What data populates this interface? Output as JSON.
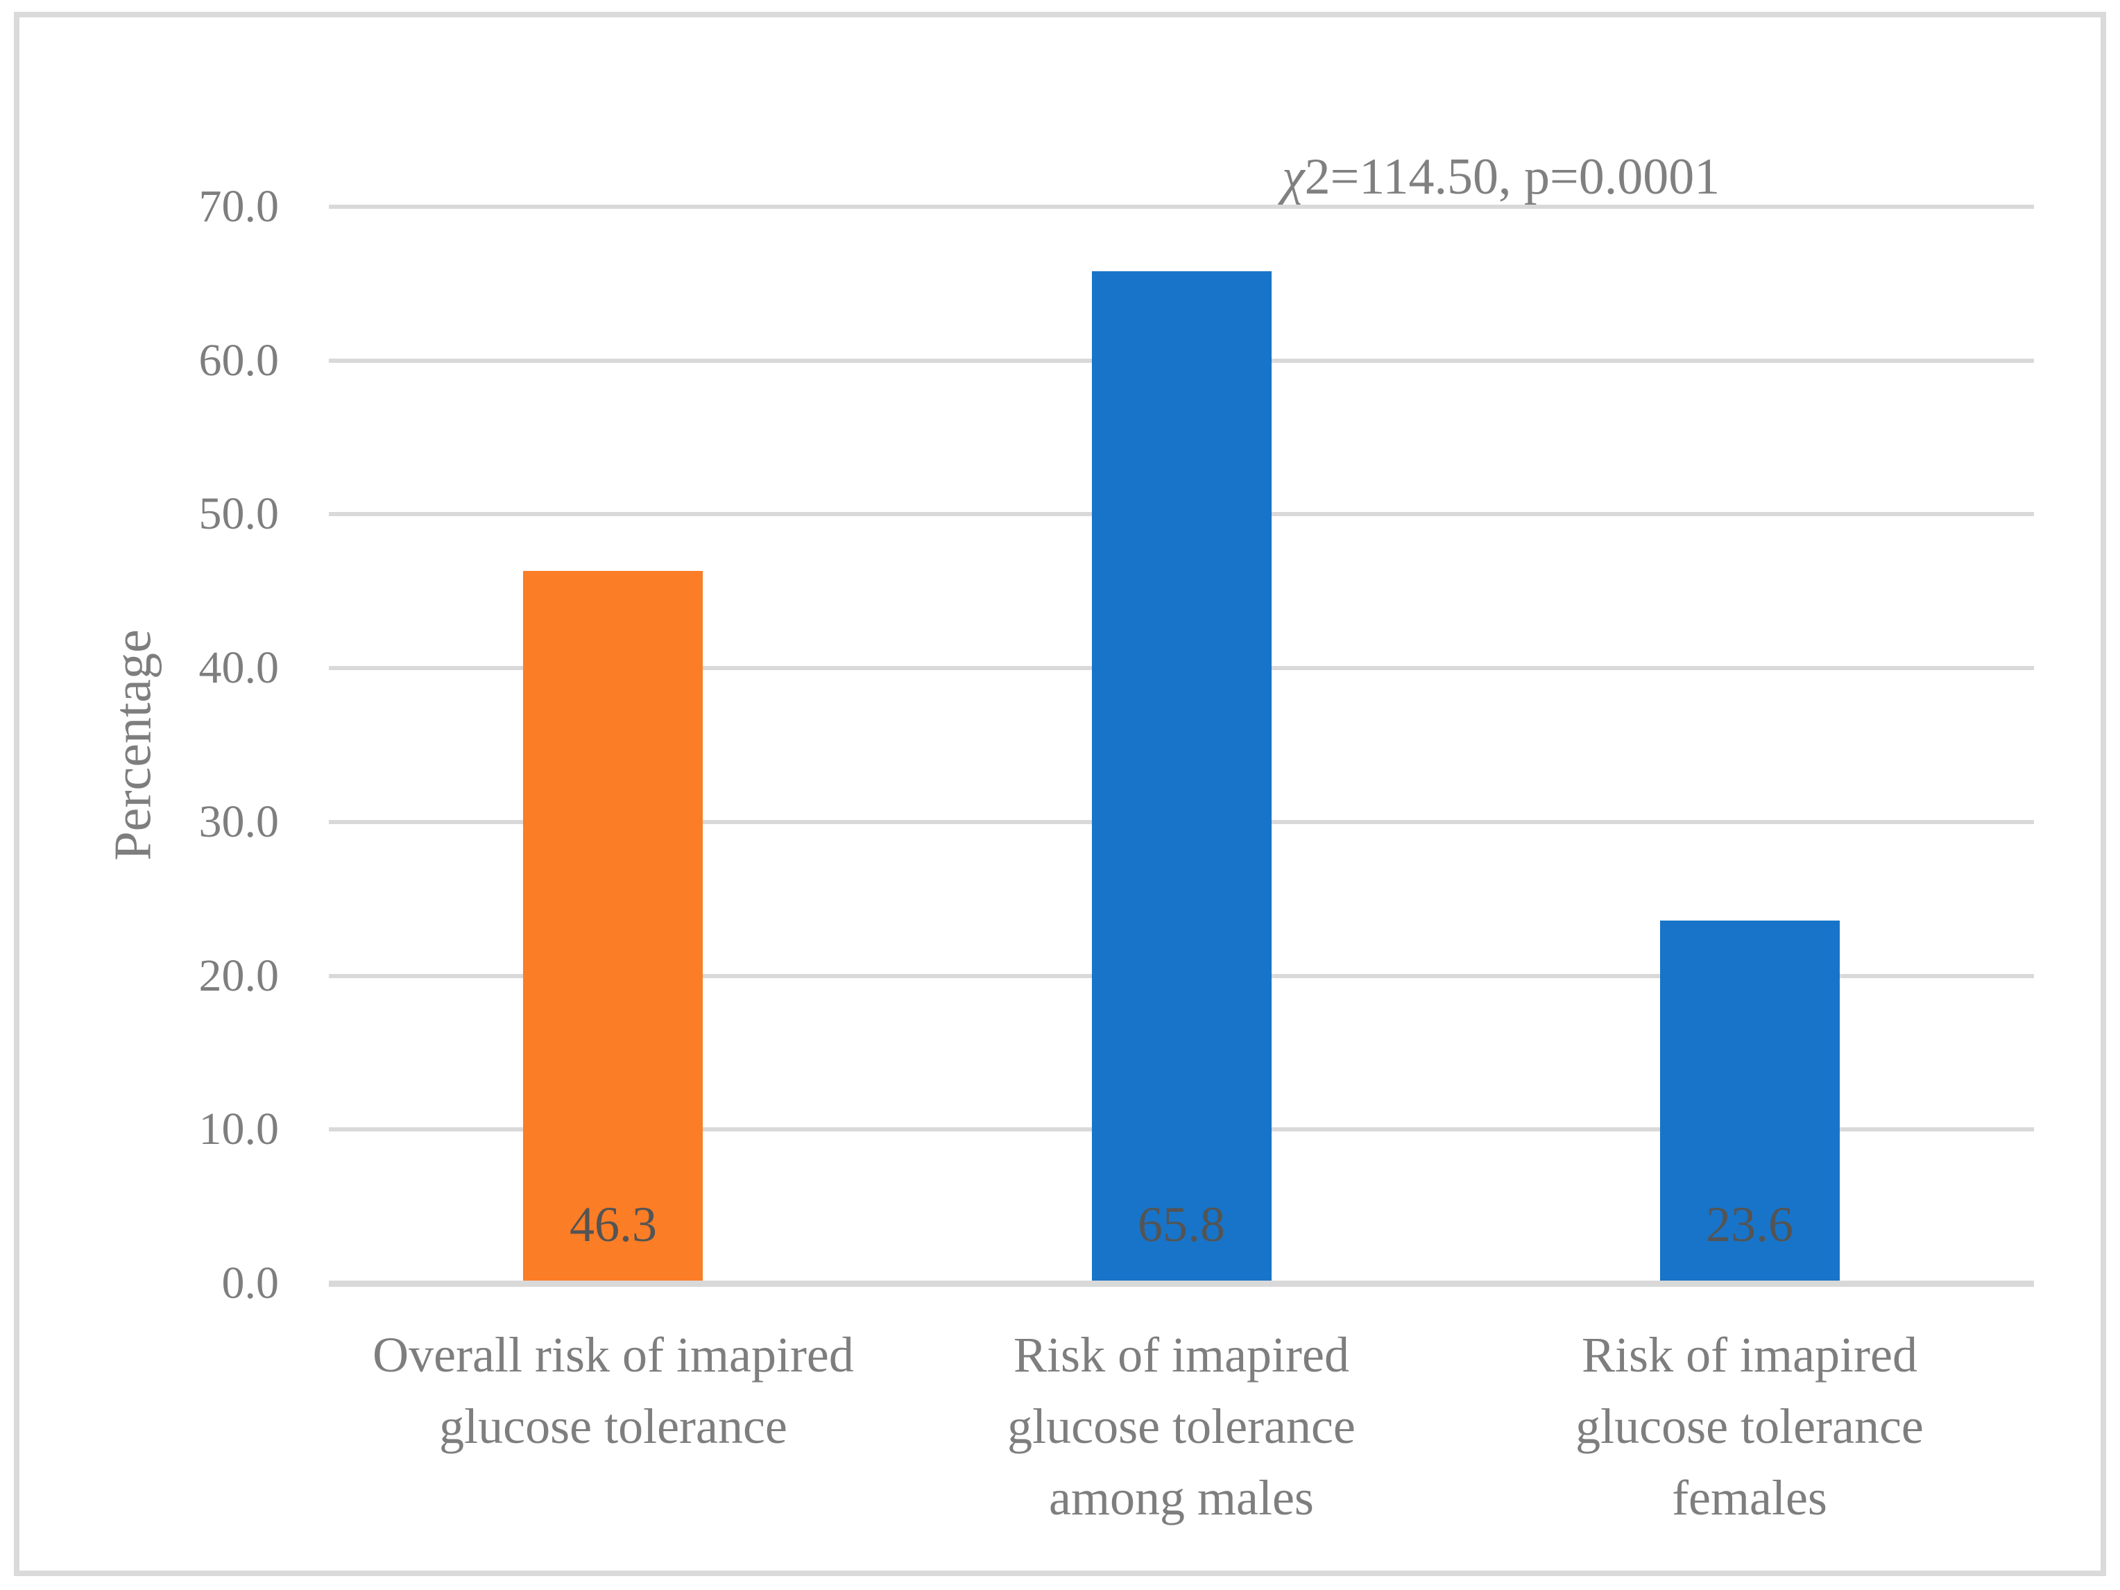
{
  "figure": {
    "background_color": "#FFFFFF",
    "border_color": "#DADADA"
  },
  "chart_data": {
    "type": "bar",
    "title": "",
    "xlabel": "",
    "ylabel": "Percentage",
    "ylim": [
      0,
      70
    ],
    "yticks": [
      0,
      10,
      20,
      30,
      40,
      50,
      60,
      70
    ],
    "ytick_labels": [
      "0.0",
      "10.0",
      "20.0",
      "30.0",
      "40.0",
      "50.0",
      "60.0",
      "70.0"
    ],
    "grid": "horizontal",
    "gridline_color": "#D9D9D9",
    "legend": "none",
    "categories": [
      "Overall risk of imapired\nglucose tolerance",
      "Risk of imapired\nglucose tolerance\namong males",
      "Risk of imapired\nglucose tolerance\nfemales"
    ],
    "values": [
      46.3,
      65.8,
      23.6
    ],
    "data_labels": [
      "46.3",
      "65.8",
      "23.6"
    ],
    "data_label_position": "inside-base",
    "bar_colors": [
      "#FB7D26",
      "#1874C8",
      "#1874C8"
    ],
    "annotation": "χ2=114.50, p=0.0001",
    "annotation_color": "#808080",
    "text_color": "#7E7E7E"
  }
}
